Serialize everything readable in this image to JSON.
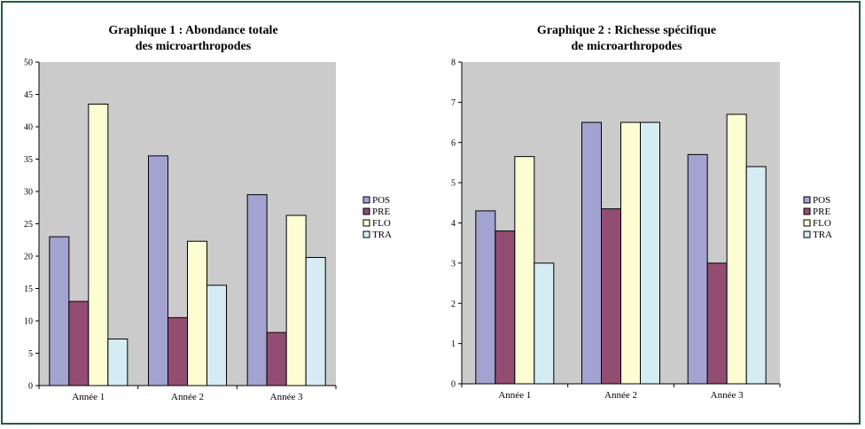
{
  "chart_data": [
    {
      "type": "bar",
      "title_line1": "Graphique 1 : Abondance totale",
      "title_line2": "des microarthropodes",
      "categories": [
        "Année 1",
        "Année 2",
        "Année 3"
      ],
      "ylim": [
        0,
        50
      ],
      "yticks": [
        "0",
        "5",
        "10",
        "15",
        "20",
        "25",
        "30",
        "35",
        "40",
        "45",
        "50"
      ],
      "grid": false,
      "legend_position": "right",
      "series": [
        {
          "name": "POS",
          "values": [
            23,
            35.5,
            29.5
          ],
          "color": "#a3a3d1"
        },
        {
          "name": "PRE",
          "values": [
            13,
            10.5,
            8.2
          ],
          "color": "#944d72"
        },
        {
          "name": "FLO",
          "values": [
            43.5,
            22.3,
            26.3
          ],
          "color": "#fdfdd3"
        },
        {
          "name": "TRA",
          "values": [
            7.2,
            15.5,
            19.8
          ],
          "color": "#d5ecf4"
        }
      ]
    },
    {
      "type": "bar",
      "title_line1": "Graphique 2 : Richesse spécifique",
      "title_line2": "de microarthropodes",
      "categories": [
        "Année 1",
        "Année 2",
        "Année 3"
      ],
      "ylim": [
        0,
        8
      ],
      "yticks": [
        "0",
        "1",
        "2",
        "3",
        "4",
        "5",
        "6",
        "7",
        "8"
      ],
      "grid": false,
      "legend_position": "right",
      "series": [
        {
          "name": "POS",
          "values": [
            4.3,
            6.5,
            5.7
          ],
          "color": "#a3a3d1"
        },
        {
          "name": "PRE",
          "values": [
            3.8,
            4.35,
            3.0
          ],
          "color": "#944d72"
        },
        {
          "name": "FLO",
          "values": [
            5.65,
            6.5,
            6.7
          ],
          "color": "#fdfdd3"
        },
        {
          "name": "TRA",
          "values": [
            3.0,
            6.5,
            5.4
          ],
          "color": "#d5ecf4"
        }
      ]
    }
  ],
  "colors": {
    "plot_background": "#cbcbcb",
    "frame_border": "#1f5e3f"
  }
}
